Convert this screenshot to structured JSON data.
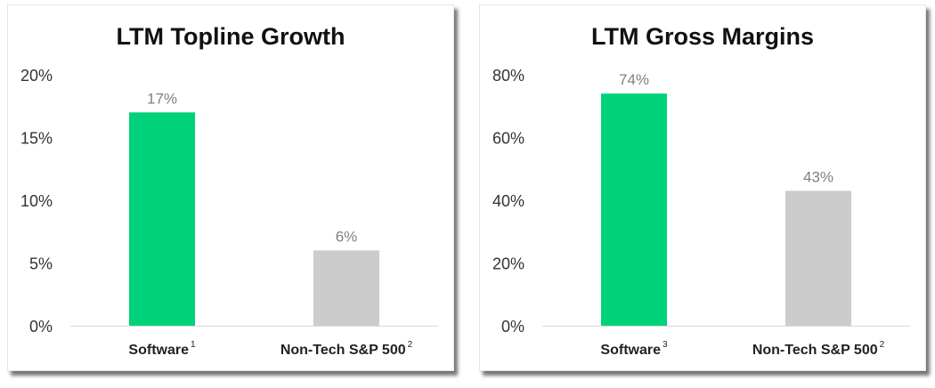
{
  "chart_data": [
    {
      "type": "bar",
      "title": "LTM Topline Growth",
      "categories": [
        "Software",
        "Non-Tech S&P 500"
      ],
      "category_superscripts": [
        "1",
        "2"
      ],
      "values": [
        17,
        6
      ],
      "data_labels": [
        "17%",
        "6%"
      ],
      "colors": [
        "#00D27A",
        "#CCCCCC"
      ],
      "ylim": [
        0,
        20
      ],
      "yticks": [
        "0%",
        "5%",
        "10%",
        "15%",
        "20%"
      ],
      "ytick_values": [
        0,
        5,
        10,
        15,
        20
      ],
      "grid": false
    },
    {
      "type": "bar",
      "title": "LTM Gross Margins",
      "categories": [
        "Software",
        "Non-Tech S&P 500"
      ],
      "category_superscripts": [
        "3",
        "2"
      ],
      "values": [
        74,
        43
      ],
      "data_labels": [
        "74%",
        "43%"
      ],
      "colors": [
        "#00D27A",
        "#CCCCCC"
      ],
      "ylim": [
        0,
        80
      ],
      "yticks": [
        "0%",
        "20%",
        "40%",
        "60%",
        "80%"
      ],
      "ytick_values": [
        0,
        20,
        40,
        60,
        80
      ],
      "grid": false
    }
  ]
}
